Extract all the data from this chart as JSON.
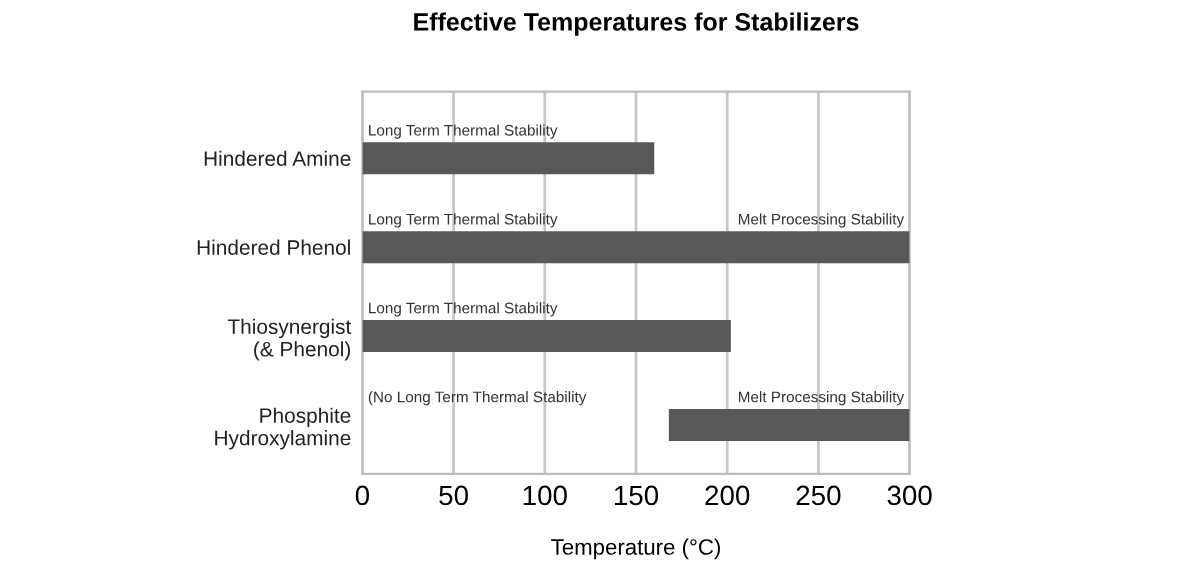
{
  "chart_data": {
    "type": "bar",
    "orientation": "horizontal",
    "title": "Effective Temperatures for Stabilizers",
    "xlabel": "Temperature (°C)",
    "categories": [
      "Hindered Amine",
      "Hindered Phenol",
      "Thiosynergist\n(& Phenol)",
      "Phosphite\nHydroxylamine"
    ],
    "values": [
      160,
      300,
      202,
      132
    ],
    "base": [
      0,
      0,
      0,
      168
    ],
    "color": "#585858",
    "xlim": [
      0,
      300
    ],
    "xticks": [
      0,
      50,
      100,
      150,
      200,
      250,
      300
    ],
    "grid": "x",
    "annotations": [
      "Long Term Thermal Stability",
      "Long Term Thermal Stability",
      "Melt Processing Stability",
      "Long Term Thermal Stability",
      "(No Long Term Thermal Stability",
      "Melt Processing Stability"
    ]
  }
}
